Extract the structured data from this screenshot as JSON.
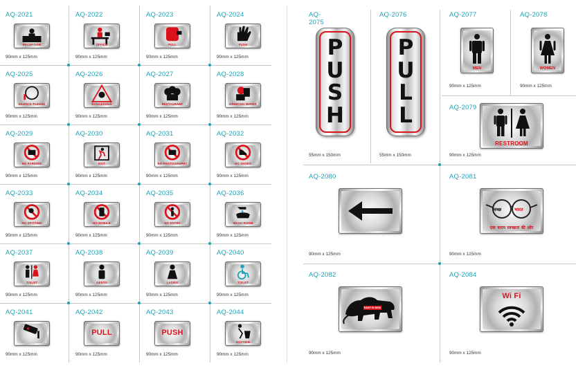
{
  "left_grid": [
    {
      "code": "AQ-2021",
      "size": "90mm x 125mm",
      "label": "RECEPTION",
      "icon": "reception-desk-icon"
    },
    {
      "code": "AQ-2022",
      "size": "90mm x 125mm",
      "label": "OFFICE",
      "icon": "office-desk-icon"
    },
    {
      "code": "AQ-2023",
      "size": "90mm x 125mm",
      "label": "PULL",
      "icon": "pulling-hand-icon"
    },
    {
      "code": "AQ-2024",
      "size": "90mm x 125mm",
      "label": "PUSH",
      "icon": "pushing-hand-icon"
    },
    {
      "code": "AQ-2025",
      "size": "90mm x 125mm",
      "label": "SILENCE PLEASE",
      "icon": "silence-face-icon"
    },
    {
      "code": "AQ-2026",
      "size": "90mm x 125mm",
      "label": "DANGEROUS",
      "icon": "danger-skull-icon"
    },
    {
      "code": "AQ-2027",
      "size": "90mm x 125mm",
      "label": "RESTAURANT",
      "icon": "chef-hats-icon"
    },
    {
      "code": "AQ-2028",
      "size": "90mm x 125mm",
      "label": "DRINKING WATER",
      "icon": "drinking-person-icon"
    },
    {
      "code": "AQ-2029",
      "size": "90mm x 125mm",
      "label": "NO PARKING",
      "icon": "no-parking-icon"
    },
    {
      "code": "AQ-2030",
      "size": "90mm x 125mm",
      "label": "EXIT",
      "icon": "exit-running-man-icon"
    },
    {
      "code": "AQ-2031",
      "size": "90mm x 125mm",
      "label": "NO PHOTOGRAPHY",
      "icon": "no-camera-icon"
    },
    {
      "code": "AQ-2032",
      "size": "90mm x 125mm",
      "label": "NO SHOES",
      "icon": "no-shoes-icon"
    },
    {
      "code": "AQ-2033",
      "size": "90mm x 125mm",
      "label": "NO SPITTING",
      "icon": "no-spitting-icon"
    },
    {
      "code": "AQ-2034",
      "size": "90mm x 125mm",
      "label": "NO MOBILE",
      "icon": "no-mobile-icon"
    },
    {
      "code": "AQ-2035",
      "size": "90mm x 125mm",
      "label": "NO ENTRY",
      "icon": "no-entry-icon"
    },
    {
      "code": "AQ-2036",
      "size": "90mm x 125mm",
      "label": "WASH ROOM",
      "icon": "hand-wash-icon"
    },
    {
      "code": "AQ-2037",
      "size": "90mm x 125mm",
      "label": "TOILET",
      "icon": "toilet-people-icon"
    },
    {
      "code": "AQ-2038",
      "size": "90mm x 125mm",
      "label": "GENTS",
      "icon": "man-icon"
    },
    {
      "code": "AQ-2039",
      "size": "90mm x 125mm",
      "label": "LADIES",
      "icon": "woman-icon"
    },
    {
      "code": "AQ-2040",
      "size": "90mm x 125mm",
      "label": "TOILET",
      "icon": "wheelchair-icon"
    },
    {
      "code": "AQ-2041",
      "size": "90mm x 125mm",
      "label": "",
      "icon": "cctv-camera-icon"
    },
    {
      "code": "AQ-2042",
      "size": "90mm x 125mm",
      "label": "PULL",
      "icon": "text-only"
    },
    {
      "code": "AQ-2043",
      "size": "90mm x 125mm",
      "label": "PUSH",
      "icon": "text-only"
    },
    {
      "code": "AQ-2044",
      "size": "90mm x 125mm",
      "label": "DUSTBIN",
      "icon": "dustbin-icon"
    }
  ],
  "right": {
    "push_tall": {
      "code": "AQ-2075",
      "size": "55mm x 150mm",
      "letters": [
        "P",
        "U",
        "S",
        "H"
      ]
    },
    "pull_tall": {
      "code": "AQ-2076",
      "size": "55mm x 150mm",
      "letters": [
        "P",
        "U",
        "L",
        "L"
      ]
    },
    "men": {
      "code": "AQ-2077",
      "size": "90mm x 125mm",
      "label": "MEN",
      "icon": "man-icon"
    },
    "women": {
      "code": "AQ-2078",
      "size": "90mm x 125mm",
      "label": "WOMEN",
      "icon": "woman-icon"
    },
    "restroom": {
      "code": "AQ-2079",
      "size": "90mm x 125mm",
      "label": "RESTROOM",
      "icon": "restroom-icon"
    },
    "arrow": {
      "code": "AQ-2080",
      "size": "90mm x 125mm",
      "icon": "arrow-left-icon"
    },
    "swachh": {
      "code": "AQ-2081",
      "size": "90mm x 125mm",
      "text_left": "स्वच्छ",
      "text_right": "भारत",
      "tagline": "एक कदम स्वच्छता की ओर",
      "icon": "spectacles-icon"
    },
    "make_in_india": {
      "code": "AQ-2082",
      "size": "90mm x 125mm",
      "label": "MAKE IN INDIA",
      "icon": "lion-icon"
    },
    "wifi": {
      "code": "AQ-2084",
      "size": "90mm x 125mm",
      "label": "Wi Fi",
      "icon": "wifi-icon"
    }
  },
  "colors": {
    "accent": "#1ba3b8",
    "sign_red": "#d9121c",
    "divider": "#c9c9c9"
  }
}
